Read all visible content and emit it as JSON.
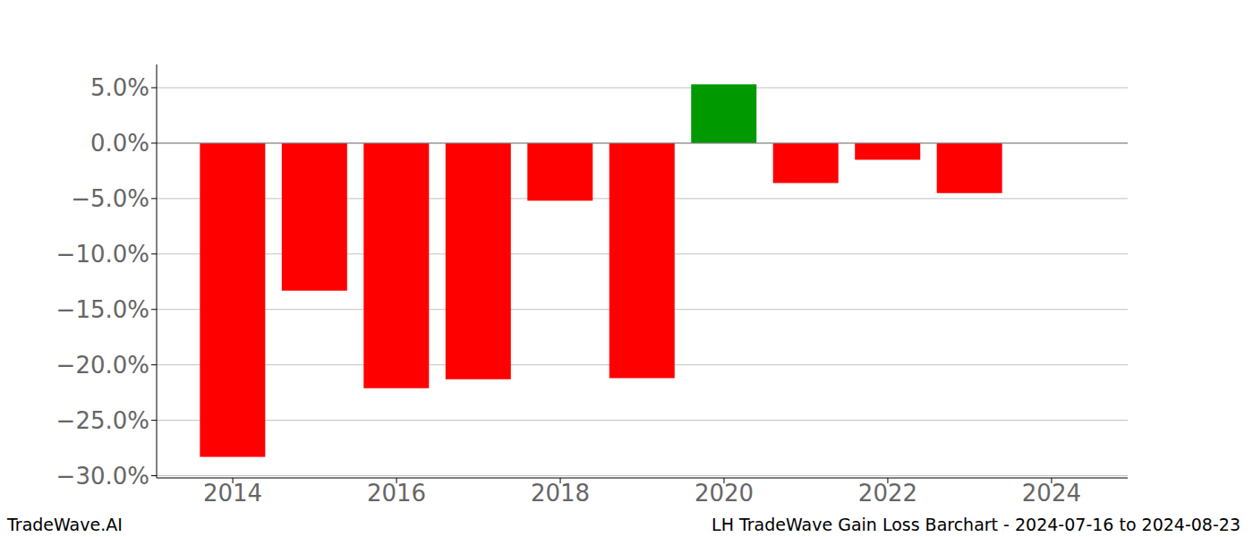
{
  "chart_data": {
    "type": "bar",
    "title": "LH TradeWave Gain Loss Barchart - 2024-07-16 to 2024-08-23",
    "annotations": [
      "TradeWave.AI"
    ],
    "x": [
      2014,
      2015,
      2016,
      2017,
      2018,
      2019,
      2020,
      2021,
      2022,
      2023
    ],
    "values": [
      -28.3,
      -13.3,
      -22.1,
      -21.3,
      -5.2,
      -21.2,
      5.3,
      -3.6,
      -1.5,
      -4.5
    ],
    "colors": [
      "#ff0000",
      "#ff0000",
      "#ff0000",
      "#ff0000",
      "#ff0000",
      "#ff0000",
      "#009900",
      "#ff0000",
      "#ff0000",
      "#ff0000"
    ],
    "xlim": [
      2013.07,
      2024.93
    ],
    "xticks": [
      2014,
      2016,
      2018,
      2020,
      2022,
      2024
    ],
    "ylim": [
      -30.2,
      7.1
    ],
    "yticks": [
      {
        "value": -30,
        "label": "−30.0%"
      },
      {
        "value": -25,
        "label": "−25.0%"
      },
      {
        "value": -20,
        "label": "−20.0%"
      },
      {
        "value": -15,
        "label": "−15.0%"
      },
      {
        "value": -10,
        "label": "−10.0%"
      },
      {
        "value": -5,
        "label": "−5.0%"
      },
      {
        "value": 0,
        "label": "0.0%"
      },
      {
        "value": 5,
        "label": "5.0%"
      }
    ],
    "grid": true
  }
}
